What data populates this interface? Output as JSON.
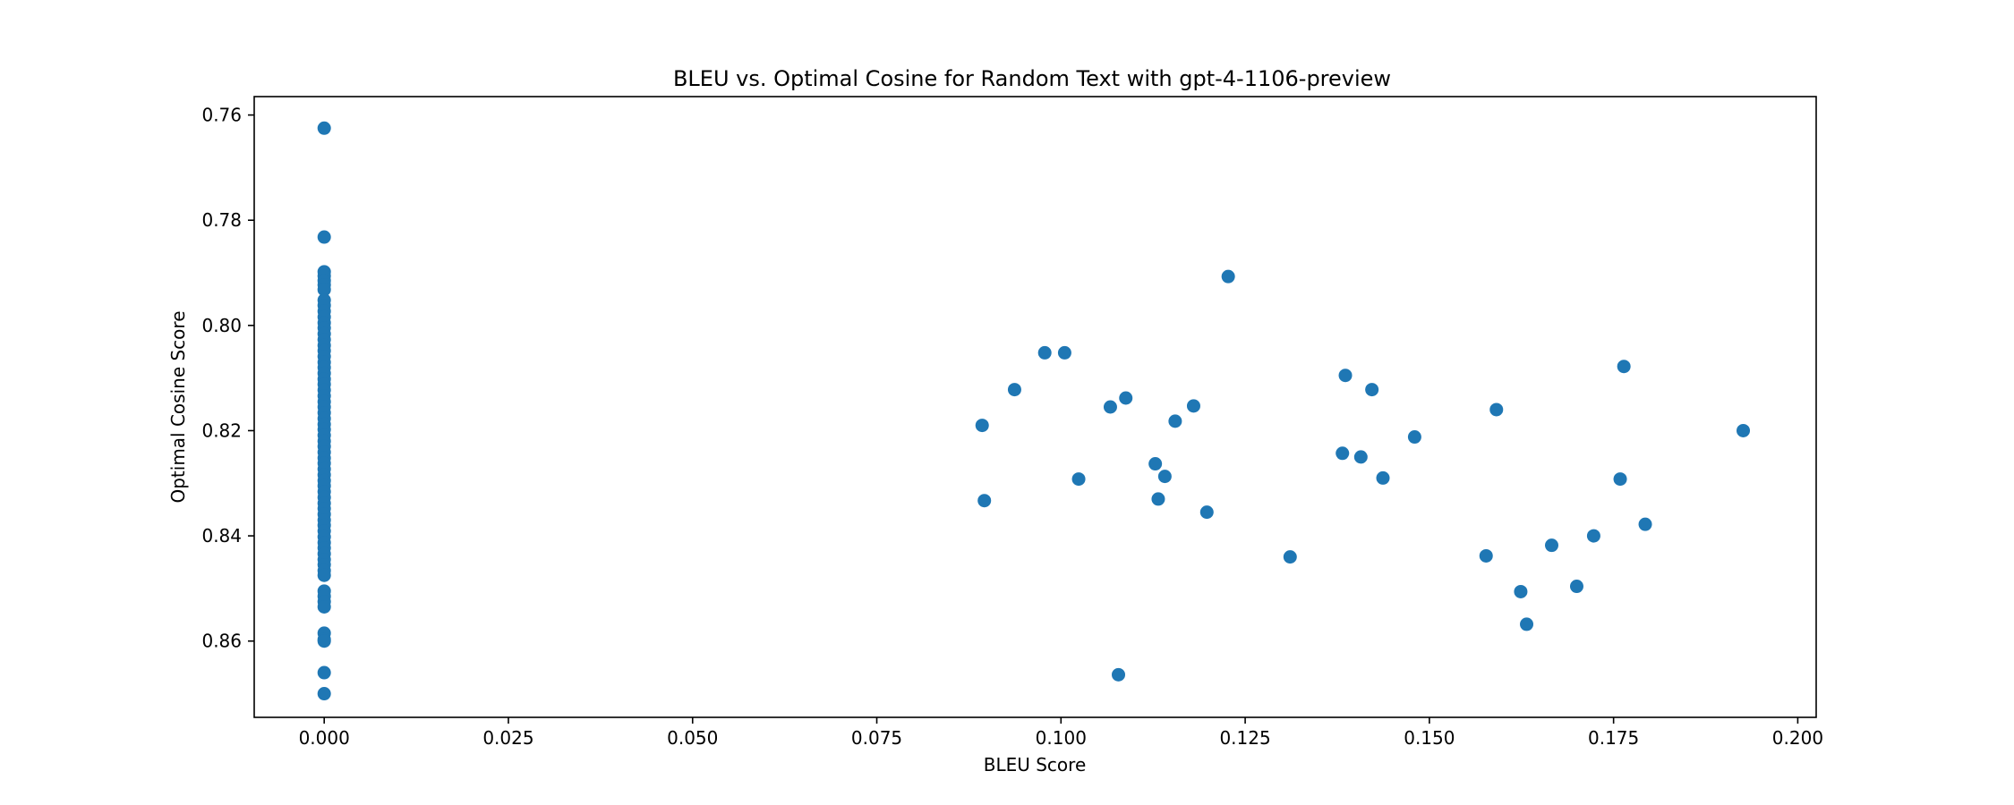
{
  "chart_data": {
    "type": "scatter",
    "title": "BLEU vs. Optimal Cosine for Random Text with gpt-4-1106-preview",
    "xlabel": "BLEU Score",
    "ylabel": "Optimal Cosine Score",
    "xlim": [
      -0.0095,
      0.2025
    ],
    "ylim": [
      0.7565,
      0.8745
    ],
    "y_inverted": true,
    "grid": false,
    "legend": "none",
    "marker_color": "#1f77b4",
    "x_ticks": [
      0.0,
      0.025,
      0.05,
      0.075,
      0.1,
      0.125,
      0.15,
      0.175,
      0.2
    ],
    "x_tick_labels": [
      "0.000",
      "0.025",
      "0.050",
      "0.075",
      "0.100",
      "0.125",
      "0.150",
      "0.175",
      "0.200"
    ],
    "y_ticks": [
      0.76,
      0.78,
      0.8,
      0.82,
      0.84,
      0.86
    ],
    "y_tick_labels": [
      "0.76",
      "0.78",
      "0.80",
      "0.82",
      "0.84",
      "0.86"
    ],
    "series": [
      {
        "points": [
          [
            0.0,
            0.7625
          ],
          [
            0.0,
            0.7832
          ],
          [
            0.0,
            0.7898
          ],
          [
            0.0,
            0.7906
          ],
          [
            0.0,
            0.7915
          ],
          [
            0.0,
            0.7923
          ],
          [
            0.0,
            0.7932
          ],
          [
            0.0,
            0.7952
          ],
          [
            0.0,
            0.7962
          ],
          [
            0.0,
            0.7973
          ],
          [
            0.0,
            0.7984
          ],
          [
            0.0,
            0.7995
          ],
          [
            0.0,
            0.8005
          ],
          [
            0.0,
            0.8016
          ],
          [
            0.0,
            0.8027
          ],
          [
            0.0,
            0.8038
          ],
          [
            0.0,
            0.8048
          ],
          [
            0.0,
            0.8059
          ],
          [
            0.0,
            0.807
          ],
          [
            0.0,
            0.808
          ],
          [
            0.0,
            0.8091
          ],
          [
            0.0,
            0.8102
          ],
          [
            0.0,
            0.8112
          ],
          [
            0.0,
            0.8123
          ],
          [
            0.0,
            0.8134
          ],
          [
            0.0,
            0.8145
          ],
          [
            0.0,
            0.8155
          ],
          [
            0.0,
            0.8166
          ],
          [
            0.0,
            0.8177
          ],
          [
            0.0,
            0.8188
          ],
          [
            0.0,
            0.8198
          ],
          [
            0.0,
            0.8209
          ],
          [
            0.0,
            0.822
          ],
          [
            0.0,
            0.823
          ],
          [
            0.0,
            0.8241
          ],
          [
            0.0,
            0.8252
          ],
          [
            0.0,
            0.8262
          ],
          [
            0.0,
            0.8273
          ],
          [
            0.0,
            0.8284
          ],
          [
            0.0,
            0.8295
          ],
          [
            0.0,
            0.8305
          ],
          [
            0.0,
            0.8316
          ],
          [
            0.0,
            0.8327
          ],
          [
            0.0,
            0.8338
          ],
          [
            0.0,
            0.8348
          ],
          [
            0.0,
            0.8359
          ],
          [
            0.0,
            0.837
          ],
          [
            0.0,
            0.838
          ],
          [
            0.0,
            0.8391
          ],
          [
            0.0,
            0.8402
          ],
          [
            0.0,
            0.8413
          ],
          [
            0.0,
            0.8423
          ],
          [
            0.0,
            0.8434
          ],
          [
            0.0,
            0.8445
          ],
          [
            0.0,
            0.8455
          ],
          [
            0.0,
            0.8466
          ],
          [
            0.0,
            0.8475
          ],
          [
            0.0,
            0.8505
          ],
          [
            0.0,
            0.8515
          ],
          [
            0.0,
            0.8525
          ],
          [
            0.0,
            0.8535
          ],
          [
            0.0,
            0.8585
          ],
          [
            0.0,
            0.8597
          ],
          [
            0.0,
            0.86
          ],
          [
            0.0,
            0.866
          ],
          [
            0.0,
            0.87
          ],
          [
            0.0893,
            0.819
          ],
          [
            0.0896,
            0.8333
          ],
          [
            0.0937,
            0.8122
          ],
          [
            0.0978,
            0.8052
          ],
          [
            0.1005,
            0.8052
          ],
          [
            0.1024,
            0.8292
          ],
          [
            0.1067,
            0.8155
          ],
          [
            0.1078,
            0.8664
          ],
          [
            0.1088,
            0.8138
          ],
          [
            0.1128,
            0.8263
          ],
          [
            0.1132,
            0.833
          ],
          [
            0.1141,
            0.8287
          ],
          [
            0.1155,
            0.8182
          ],
          [
            0.118,
            0.8153
          ],
          [
            0.1198,
            0.8355
          ],
          [
            0.1227,
            0.7907
          ],
          [
            0.1311,
            0.844
          ],
          [
            0.1382,
            0.8243
          ],
          [
            0.1386,
            0.8095
          ],
          [
            0.1407,
            0.825
          ],
          [
            0.1422,
            0.8122
          ],
          [
            0.1437,
            0.829
          ],
          [
            0.148,
            0.8212
          ],
          [
            0.1577,
            0.8438
          ],
          [
            0.1591,
            0.816
          ],
          [
            0.1624,
            0.8506
          ],
          [
            0.1632,
            0.8568
          ],
          [
            0.1666,
            0.8418
          ],
          [
            0.17,
            0.8496
          ],
          [
            0.1723,
            0.84
          ],
          [
            0.1759,
            0.8292
          ],
          [
            0.1764,
            0.8078
          ],
          [
            0.1793,
            0.8378
          ],
          [
            0.1926,
            0.82
          ]
        ]
      }
    ]
  }
}
